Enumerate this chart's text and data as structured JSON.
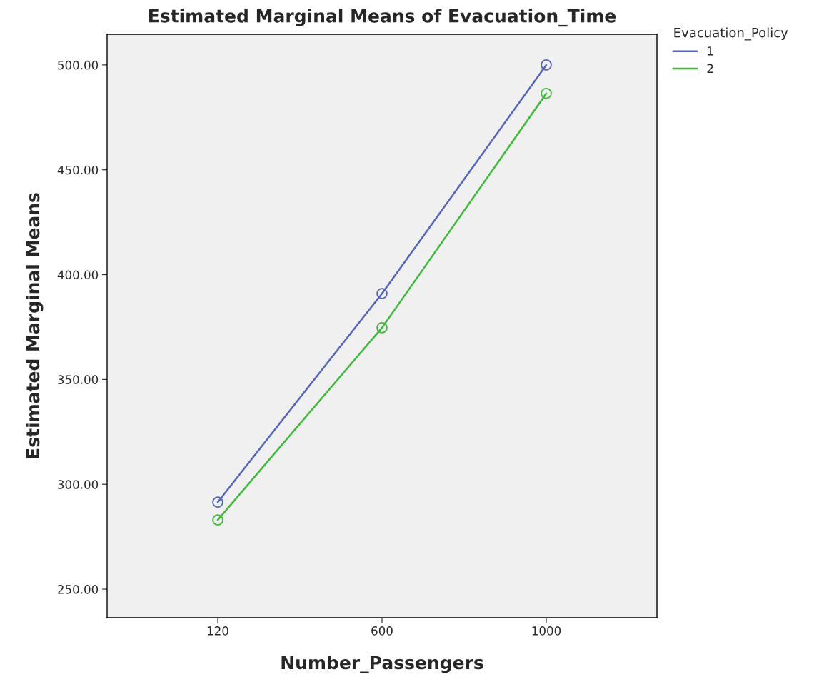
{
  "chart_data": {
    "type": "line",
    "title": "Estimated Marginal Means of Evacuation_Time",
    "xlabel": "Number_Passengers",
    "ylabel": "Estimated Marginal Means",
    "legend_title": "Evacuation_Policy",
    "categories": [
      "120",
      "600",
      "1000"
    ],
    "series": [
      {
        "name": "1",
        "color": "#5565b8",
        "values": [
          291.5,
          391,
          500
        ]
      },
      {
        "name": "2",
        "color": "#3fb93a",
        "values": [
          283,
          374.7,
          486.4
        ]
      }
    ],
    "ylim": [
      236.4,
      514.6
    ],
    "yticks": [
      {
        "value": 250,
        "label": "250.00"
      },
      {
        "value": 300,
        "label": "300.00"
      },
      {
        "value": 350,
        "label": "350.00"
      },
      {
        "value": 400,
        "label": "400.00"
      },
      {
        "value": 450,
        "label": "450.00"
      },
      {
        "value": 500,
        "label": "500.00"
      }
    ],
    "marker": "circle",
    "line_style": "solid",
    "grid": false,
    "legend": "top right"
  }
}
